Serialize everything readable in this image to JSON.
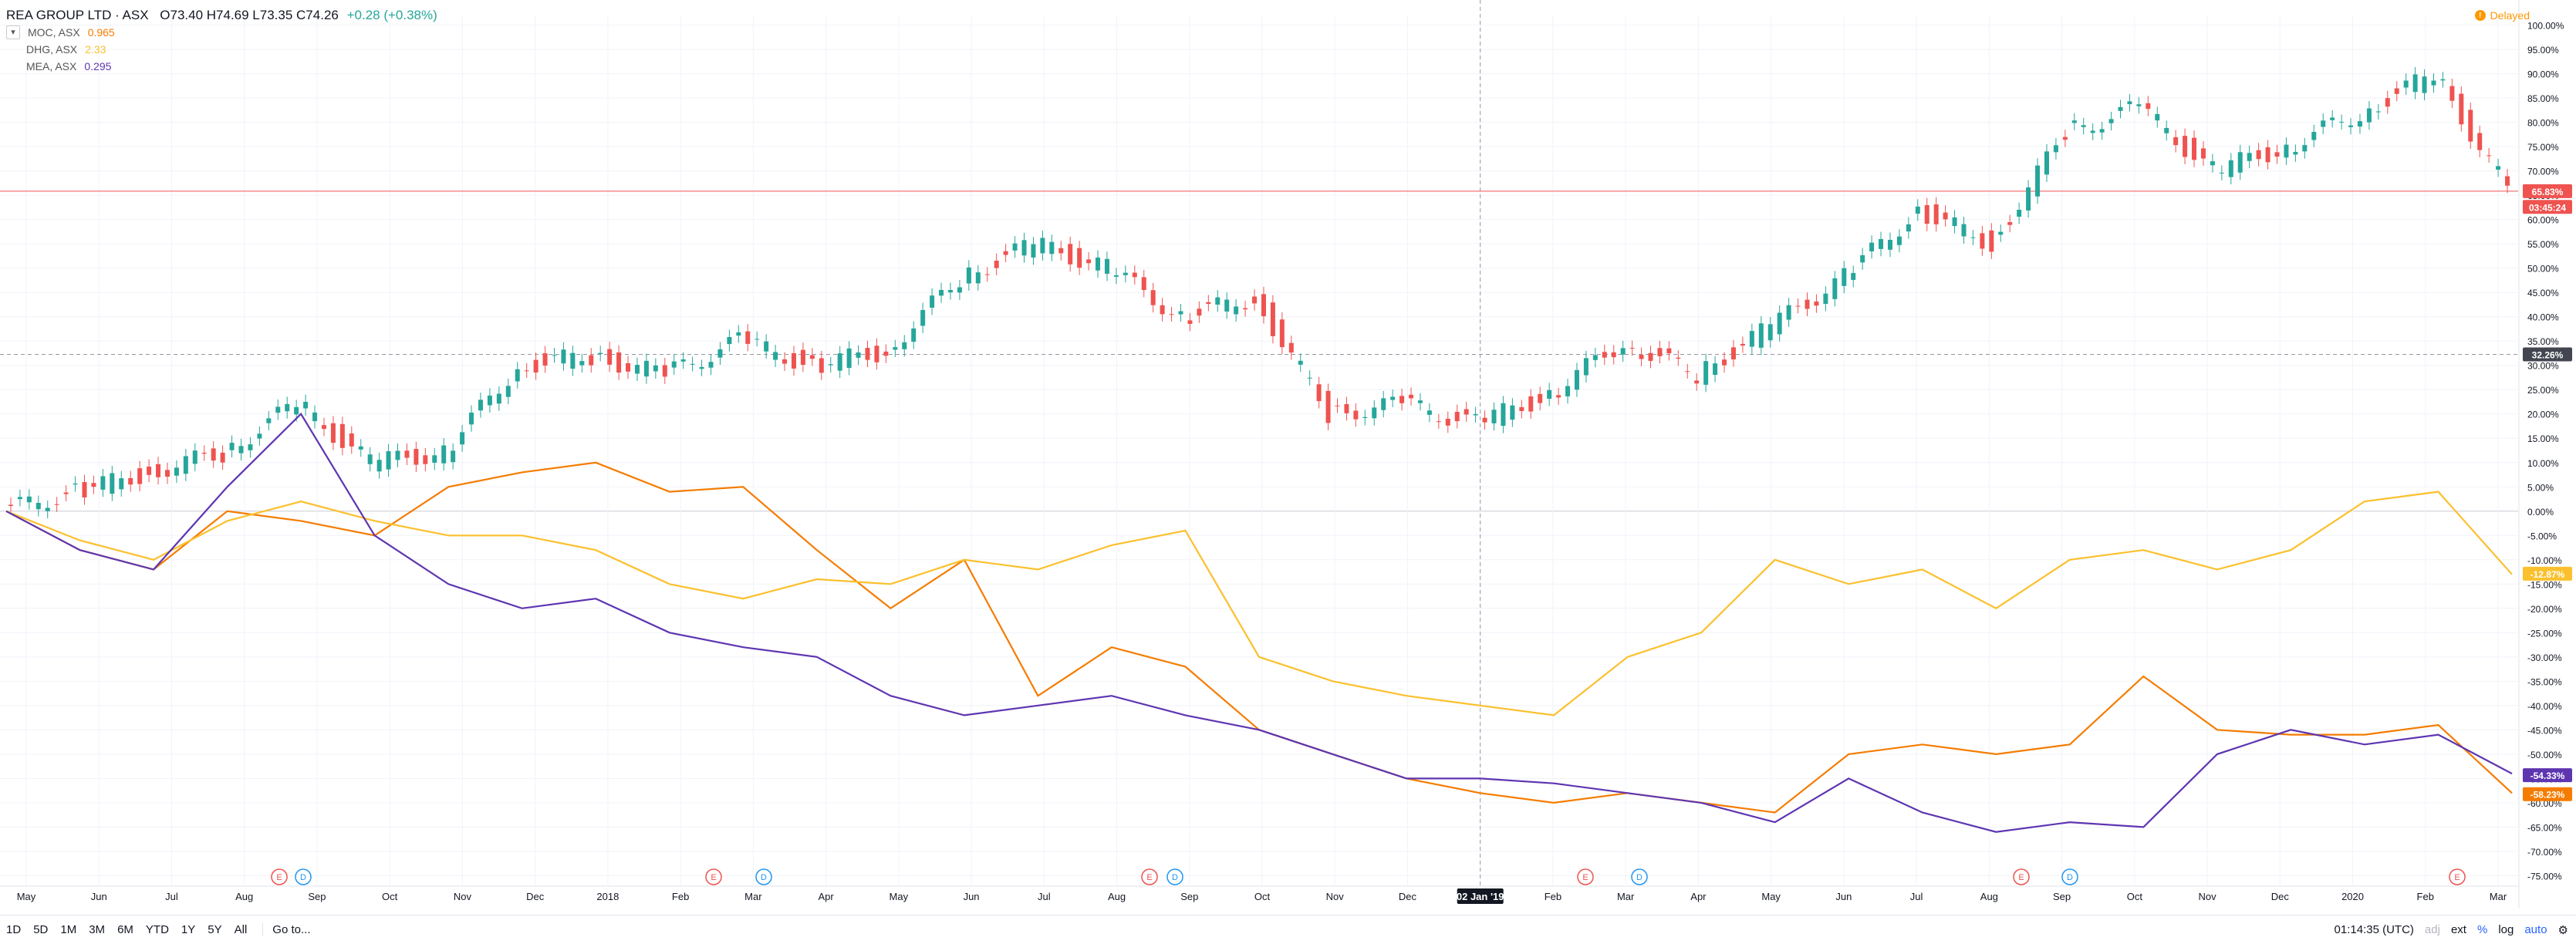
{
  "header": {
    "symbol": "REA GROUP LTD · ASX",
    "ohlc": "O73.40  H74.69  L73.35  C74.26",
    "change": "+0.28 (+0.38%)"
  },
  "compare": [
    {
      "name": "MOC, ASX",
      "value": "0.965",
      "color": "#f57c00"
    },
    {
      "name": "DHG, ASX",
      "value": "2.33",
      "color": "#fbc02d"
    },
    {
      "name": "MEA, ASX",
      "value": "0.295",
      "color": "#5e35b1"
    }
  ],
  "delayed_label": "Delayed",
  "price_scale": {
    "ticks": [
      "100.00%",
      "95.00%",
      "90.00%",
      "85.00%",
      "80.00%",
      "75.00%",
      "70.00%",
      "65.00%",
      "60.00%",
      "55.00%",
      "50.00%",
      "45.00%",
      "40.00%",
      "35.00%",
      "30.00%",
      "25.00%",
      "20.00%",
      "15.00%",
      "10.00%",
      "5.00%",
      "0.00%",
      "-5.00%",
      "-10.00%",
      "-15.00%",
      "-20.00%",
      "-25.00%",
      "-30.00%",
      "-35.00%",
      "-40.00%",
      "-45.00%",
      "-50.00%",
      "-55.00%",
      "-60.00%",
      "-65.00%",
      "-70.00%",
      "-75.00%"
    ],
    "badges": [
      {
        "text": "65.83%",
        "value": 65.83,
        "color": "#ef5350"
      },
      {
        "text": "03:45:24",
        "value": 62.6,
        "color": "#ef5350"
      },
      {
        "text": "32.26%",
        "value": 32.26,
        "color": "#434651"
      },
      {
        "text": "-12.87%",
        "value": -12.87,
        "color": "#fbc02d"
      },
      {
        "text": "-54.33%",
        "value": -54.33,
        "color": "#5e35b1"
      },
      {
        "text": "-58.23%",
        "value": -58.23,
        "color": "#f57c00"
      }
    ]
  },
  "time_scale": {
    "labels": [
      "May",
      "Jun",
      "Jul",
      "Aug",
      "Sep",
      "Oct",
      "Nov",
      "Dec",
      "2018",
      "Feb",
      "Mar",
      "Apr",
      "May",
      "Jun",
      "Jul",
      "Aug",
      "Sep",
      "Oct",
      "Nov",
      "Dec",
      "02 Jan '19",
      "Feb",
      "Mar",
      "Apr",
      "May",
      "Jun",
      "Jul",
      "Aug",
      "Sep",
      "Oct",
      "Nov",
      "Dec",
      "2020",
      "Feb",
      "Mar"
    ],
    "crosshair_label": "02 Jan '19"
  },
  "events": [
    {
      "type": "E"
    },
    {
      "type": "D"
    },
    {
      "type": "E"
    },
    {
      "type": "D"
    },
    {
      "type": "E"
    },
    {
      "type": "D"
    },
    {
      "type": "E"
    },
    {
      "type": "D"
    },
    {
      "type": "E"
    },
    {
      "type": "D"
    },
    {
      "type": "E"
    }
  ],
  "ranges": [
    "1D",
    "5D",
    "1M",
    "3M",
    "6M",
    "YTD",
    "1Y",
    "5Y",
    "All"
  ],
  "goto_label": "Go to...",
  "footer": {
    "time": "01:14:35 (UTC)",
    "adj": "adj",
    "ext": "ext",
    "percent": "%",
    "log": "log",
    "auto": "auto"
  },
  "chart_data": {
    "type": "line",
    "title": "REA GROUP LTD · ASX",
    "ylim": [
      -77,
      102
    ],
    "y_unit": "%",
    "x": [
      0,
      1,
      2,
      3,
      4,
      5,
      6,
      7,
      8,
      9,
      10,
      11,
      12,
      13,
      14,
      15,
      16,
      17,
      18,
      19,
      20,
      21,
      22,
      23,
      24,
      25,
      26,
      27,
      28,
      29,
      30,
      31,
      32,
      33,
      34
    ],
    "series": [
      {
        "name": "REA GROUP LTD · ASX",
        "color": "#26a69a",
        "values": [
          0,
          4,
          8,
          12,
          22,
          10,
          12,
          30,
          32,
          28,
          35,
          30,
          33,
          48,
          55,
          50,
          40,
          44,
          20,
          22,
          18,
          24,
          35,
          28,
          38,
          48,
          62,
          55,
          78,
          83,
          70,
          75,
          82,
          90,
          66
        ]
      },
      {
        "name": "MOC, ASX",
        "color": "#f57c00",
        "values": [
          0,
          -8,
          -12,
          0,
          -2,
          -5,
          5,
          8,
          10,
          4,
          5,
          -8,
          -20,
          -10,
          -38,
          -28,
          -32,
          -45,
          -50,
          -55,
          -58,
          -60,
          -58,
          -60,
          -62,
          -50,
          -48,
          -50,
          -48,
          -34,
          -45,
          -46,
          -46,
          -44,
          -58
        ]
      },
      {
        "name": "DHG, ASX",
        "color": "#fbc02d",
        "values": [
          0,
          -6,
          -10,
          -2,
          2,
          -2,
          -5,
          -5,
          -8,
          -15,
          -18,
          -14,
          -15,
          -10,
          -12,
          -7,
          -4,
          -30,
          -35,
          -38,
          -40,
          -42,
          -30,
          -25,
          -10,
          -15,
          -12,
          -20,
          -10,
          -8,
          -12,
          -8,
          2,
          4,
          -13
        ]
      },
      {
        "name": "MEA, ASX",
        "color": "#5e35b1",
        "values": [
          0,
          -8,
          -12,
          5,
          20,
          -5,
          -15,
          -20,
          -18,
          -25,
          -28,
          -30,
          -38,
          -42,
          -40,
          -38,
          -42,
          -45,
          -50,
          -55,
          -55,
          -56,
          -58,
          -60,
          -64,
          -55,
          -62,
          -66,
          -64,
          -65,
          -50,
          -45,
          -48,
          -46,
          -54
        ]
      }
    ]
  }
}
